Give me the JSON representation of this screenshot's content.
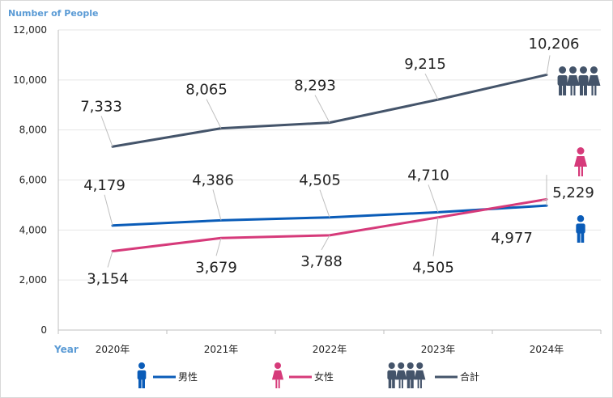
{
  "chart_data": {
    "type": "line",
    "ylabel": "Number of People",
    "xlabel": "Year",
    "categories": [
      "2020年",
      "2021年",
      "2022年",
      "2023年",
      "2024年"
    ],
    "ylim": [
      0,
      12000
    ],
    "yticks": [
      0,
      2000,
      4000,
      6000,
      8000,
      10000,
      12000
    ],
    "ytick_labels": [
      "0",
      "2,000",
      "4,000",
      "6,000",
      "8,000",
      "10,000",
      "12,000"
    ],
    "grid": "horizontal",
    "legend_position": "bottom",
    "series": [
      {
        "name": "男性",
        "color": "#0a5cb8",
        "icon": "male-person-icon",
        "values": [
          4179,
          4386,
          4505,
          4710,
          4977
        ],
        "labels": [
          "4,179",
          "4,386",
          "4,505",
          "4,710",
          "4,977"
        ]
      },
      {
        "name": "女性",
        "color": "#d63a7a",
        "icon": "female-person-icon",
        "values": [
          3154,
          3679,
          3788,
          4505,
          5229
        ],
        "labels": [
          "3,154",
          "3,679",
          "3,788",
          "4,505",
          "5,229"
        ]
      },
      {
        "name": "合計",
        "color": "#44546a",
        "icon": "group-of-people-icon",
        "values": [
          7333,
          8065,
          8293,
          9215,
          10206
        ],
        "labels": [
          "7,333",
          "8,065",
          "8,293",
          "9,215",
          "10,206"
        ]
      }
    ]
  }
}
